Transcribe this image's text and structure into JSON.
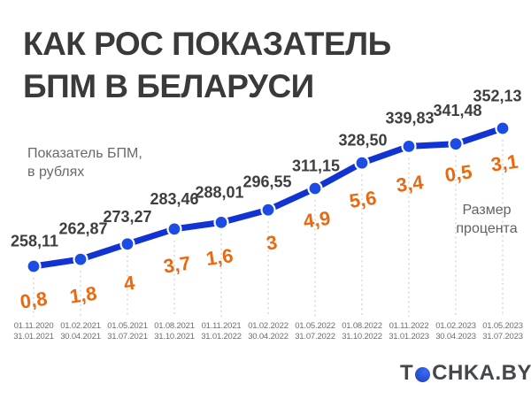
{
  "header": {
    "title": "КАК РОС ПОКАЗАТЕЛЬ\nБПМ В БЕЛАРУСИ"
  },
  "chart_data": {
    "type": "line",
    "title": "КАК РОС ПОКАЗАТЕЛЬ БПМ В БЕЛАРУСИ",
    "grid": "vertical-dashed-guides",
    "legend_position": "inline-annotations",
    "ylim": [
      258.11,
      352.13
    ],
    "x_categories": [
      {
        "from": "01.11.2020",
        "to": "31.01.2021"
      },
      {
        "from": "01.02.2021",
        "to": "30.04.2021"
      },
      {
        "from": "01.05.2021",
        "to": "31.07.2021"
      },
      {
        "from": "01.08.2021",
        "to": "31.10.2021"
      },
      {
        "from": "01.11.2021",
        "to": "31.01.2022"
      },
      {
        "from": "01.02.2022",
        "to": "30.04.2022"
      },
      {
        "from": "01.05.2022",
        "to": "31.07.2022"
      },
      {
        "from": "01.08.2022",
        "to": "31.10.2022"
      },
      {
        "from": "01.11.2022",
        "to": "31.01.2023"
      },
      {
        "from": "01.02.2023",
        "to": "30.04.2023"
      },
      {
        "from": "01.05.2023",
        "to": "31.07.2023"
      }
    ],
    "series_rubles": {
      "label": "Показатель БПМ,\nв рублях",
      "values": [
        258.11,
        262.87,
        273.27,
        283.46,
        288.01,
        296.55,
        311.15,
        328.5,
        339.83,
        341.48,
        352.13
      ],
      "display": [
        "258,11",
        "262,87",
        "273,27",
        "283,46",
        "288,01",
        "296,55",
        "311,15",
        "328,50",
        "339,83",
        "341,48",
        "352,13"
      ]
    },
    "series_percent": {
      "label": "Размер\nпроцента",
      "values": [
        0.8,
        1.8,
        4,
        3.7,
        1.6,
        3,
        4.9,
        5.6,
        3.4,
        0.5,
        3.1
      ],
      "display": [
        "0,8",
        "1,8",
        "4",
        "3,7",
        "1,6",
        "3",
        "4,9",
        "5,6",
        "3,4",
        "0,5",
        "3,1"
      ]
    },
    "colors": {
      "line": "#1133d4",
      "marker": "#1d4ce4",
      "value_label": "#3e3e40",
      "percent_label": "#e8690f",
      "title": "#3a3a3c"
    }
  },
  "branding": {
    "logo_t": "T",
    "logo_rest": "CHKA.BY",
    "dot_icon": "tochka-dot-icon"
  }
}
